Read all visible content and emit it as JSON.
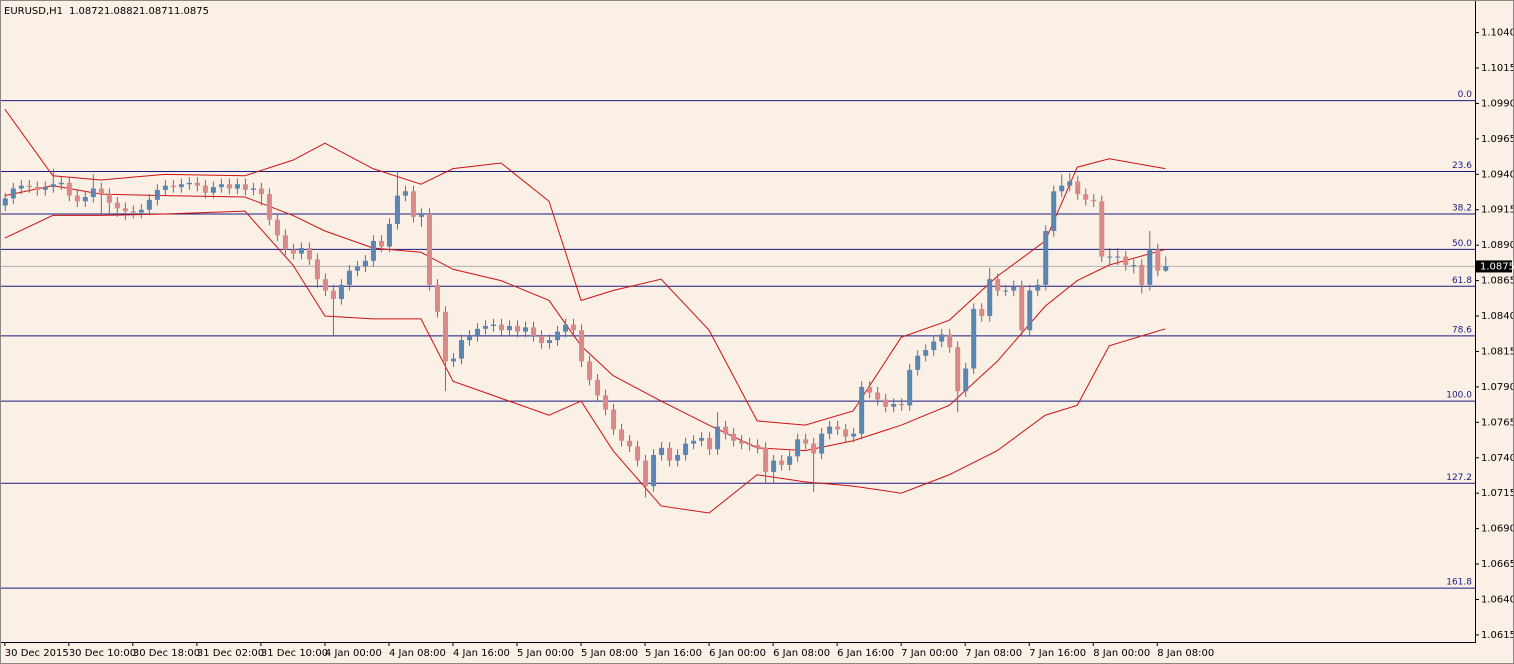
{
  "chart_data": {
    "type": "candlestick",
    "symbol": "EURUSD,H1",
    "background": "#faf0e6",
    "up_color": "#5b86b3",
    "down_color": "#d98a88",
    "wick_color": "#6f6f6f",
    "xlim": [
      -0.6,
      183.7
    ],
    "ylim": [
      1.061,
      1.1063
    ],
    "yticks": [
      {
        "value": 1.104,
        "label": "1.1040"
      },
      1.1015,
      {
        "value": 1.099,
        "label": "1.0990"
      },
      1.0965,
      {
        "value": 1.094,
        "label": "1.0940"
      },
      1.0915,
      {
        "value": 1.089,
        "label": "1.0890"
      },
      1.0865,
      {
        "value": 1.084,
        "label": "1.0840"
      },
      1.0815,
      {
        "value": 1.079,
        "label": "1.0790"
      },
      1.0765,
      {
        "value": 1.074,
        "label": "1.0740"
      },
      1.0715,
      {
        "value": 1.069,
        "label": "1.0690"
      },
      1.0665,
      {
        "value": 1.064,
        "label": "1.0640"
      },
      1.0615
    ],
    "xticks": [
      {
        "value": 0,
        "label": "30 Dec 2015"
      },
      {
        "value": 8,
        "label": "30 Dec 10:00"
      },
      {
        "value": 16,
        "label": "30 Dec 18:00"
      },
      {
        "value": 24,
        "label": "31 Dec 02:00"
      },
      {
        "value": 32,
        "label": "31 Dec 10:00"
      },
      {
        "value": 40,
        "label": "4 Jan 00:00"
      },
      {
        "value": 48,
        "label": "4 Jan 08:00"
      },
      {
        "value": 56,
        "label": "4 Jan 16:00"
      },
      {
        "value": 64,
        "label": "5 Jan 00:00"
      },
      {
        "value": 72,
        "label": "5 Jan 08:00"
      },
      {
        "value": 80,
        "label": "5 Jan 16:00"
      },
      {
        "value": 88,
        "label": "6 Jan 00:00"
      },
      {
        "value": 96,
        "label": "6 Jan 08:00"
      },
      {
        "value": 104,
        "label": "6 Jan 16:00"
      },
      {
        "value": 112,
        "label": "7 Jan 00:00"
      },
      {
        "value": 120,
        "label": "7 Jan 08:00"
      },
      {
        "value": 128,
        "label": "7 Jan 16:00"
      },
      {
        "value": 136,
        "label": "8 Jan 00:00"
      },
      {
        "value": 144,
        "label": "8 Jan 08:00"
      }
    ],
    "open": [
      1.0918,
      1.0923,
      1.093,
      1.0932,
      1.0931,
      1.0929,
      1.0931,
      1.0933,
      1.0934,
      1.0925,
      1.0921,
      1.0924,
      1.093,
      1.0926,
      1.092,
      1.0916,
      1.0914,
      1.0913,
      1.0915,
      1.0922,
      1.0929,
      1.0932,
      1.0931,
      1.0933,
      1.0934,
      1.0932,
      1.0927,
      1.0931,
      1.0933,
      1.093,
      1.0933,
      1.0929,
      1.093,
      1.0926,
      1.0908,
      1.0897,
      1.0887,
      1.0884,
      1.0888,
      1.088,
      1.0866,
      1.0858,
      1.0852,
      1.0862,
      1.0872,
      1.0875,
      1.0879,
      1.0893,
      1.0889,
      1.0905,
      1.0925,
      1.0928,
      1.091,
      1.0912,
      1.0862,
      1.0843,
      1.0808,
      1.081,
      1.0823,
      1.0826,
      1.0831,
      1.0833,
      1.0834,
      1.083,
      1.0833,
      1.0829,
      1.0832,
      1.0826,
      1.0821,
      1.0823,
      1.0829,
      1.0834,
      1.083,
      1.0808,
      1.0795,
      1.0784,
      1.0774,
      1.076,
      1.0752,
      1.0748,
      1.0738,
      1.072,
      1.0742,
      1.0747,
      1.0738,
      1.0742,
      1.075,
      1.0752,
      1.0754,
      1.0746,
      1.0762,
      1.0757,
      1.0752,
      1.075,
      1.0749,
      1.0747,
      1.073,
      1.0738,
      1.0735,
      1.0741,
      1.0753,
      1.075,
      1.0743,
      1.0757,
      1.0762,
      1.076,
      1.0755,
      1.0757,
      1.079,
      1.0786,
      1.0781,
      1.0776,
      1.0778,
      1.0777,
      1.0802,
      1.0812,
      1.0816,
      1.0822,
      1.0827,
      1.0818,
      1.0787,
      1.0803,
      1.0845,
      1.084,
      1.0866,
      1.0858,
      1.0858,
      1.0861,
      1.083,
      1.0858,
      1.0862,
      1.09,
      1.0928,
      1.0932,
      1.0935,
      1.0926,
      1.0922,
      1.0921,
      1.0882,
      1.0882,
      1.0882,
      1.0876,
      1.0876,
      1.0862,
      1.0887,
      1.0872
    ],
    "high": [
      1.0927,
      1.0934,
      1.0936,
      1.0936,
      1.0935,
      1.0935,
      1.0944,
      1.0938,
      1.0938,
      1.0929,
      1.0928,
      1.094,
      1.0934,
      1.093,
      1.0924,
      1.092,
      1.0918,
      1.0919,
      1.0926,
      1.0933,
      1.0936,
      1.0936,
      1.0937,
      1.0938,
      1.0938,
      1.0936,
      1.0935,
      1.0937,
      1.0937,
      1.0937,
      1.0937,
      1.0934,
      1.0934,
      1.093,
      1.0912,
      1.0901,
      1.0891,
      1.0892,
      1.0892,
      1.0884,
      1.087,
      1.0862,
      1.0866,
      1.0876,
      1.0879,
      1.0883,
      1.0897,
      1.0897,
      1.0909,
      1.0942,
      1.0932,
      1.0932,
      1.0916,
      1.0916,
      1.0866,
      1.0847,
      1.0814,
      1.0827,
      1.083,
      1.0835,
      1.0837,
      1.0838,
      1.0838,
      1.0837,
      1.0837,
      1.0836,
      1.0836,
      1.083,
      1.0827,
      1.0833,
      1.0838,
      1.0838,
      1.0834,
      1.0812,
      1.0799,
      1.0788,
      1.0778,
      1.0764,
      1.0756,
      1.0752,
      1.0742,
      1.0746,
      1.0751,
      1.0751,
      1.0746,
      1.0754,
      1.0756,
      1.0758,
      1.0758,
      1.0772,
      1.0766,
      1.0761,
      1.0756,
      1.0754,
      1.0753,
      1.0751,
      1.0742,
      1.0742,
      1.0745,
      1.0757,
      1.0757,
      1.0754,
      1.0761,
      1.0766,
      1.0766,
      1.0764,
      1.0761,
      1.0794,
      1.0794,
      1.079,
      1.0785,
      1.0782,
      1.0782,
      1.0806,
      1.0816,
      1.082,
      1.0826,
      1.0831,
      1.0831,
      1.0822,
      1.0807,
      1.0849,
      1.0849,
      1.0874,
      1.087,
      1.0862,
      1.0865,
      1.0865,
      1.0862,
      1.0866,
      1.0904,
      1.0932,
      1.094,
      1.0941,
      1.0939,
      1.093,
      1.0926,
      1.0925,
      1.0888,
      1.0888,
      1.0886,
      1.088,
      1.088,
      1.09,
      1.0891,
      1.0882
    ],
    "low": [
      1.0914,
      1.0919,
      1.0926,
      1.0927,
      1.0925,
      1.0925,
      1.0927,
      1.0929,
      1.0921,
      1.0917,
      1.0917,
      1.092,
      1.0912,
      1.0912,
      1.091,
      1.0908,
      1.0909,
      1.0909,
      1.0911,
      1.0918,
      1.0925,
      1.0927,
      1.0927,
      1.0929,
      1.0928,
      1.0923,
      1.0923,
      1.0927,
      1.0926,
      1.0926,
      1.0925,
      1.0925,
      1.0918,
      1.0904,
      1.0893,
      1.0883,
      1.088,
      1.088,
      1.0876,
      1.086,
      1.0854,
      1.0826,
      1.0848,
      1.0858,
      1.0868,
      1.0871,
      1.0875,
      1.0885,
      1.0885,
      1.0901,
      1.0921,
      1.0906,
      1.0903,
      1.0858,
      1.0839,
      1.0787,
      1.0804,
      1.0806,
      1.0819,
      1.0822,
      1.0827,
      1.0829,
      1.0826,
      1.0826,
      1.0825,
      1.0825,
      1.0822,
      1.0817,
      1.0817,
      1.0819,
      1.0825,
      1.0826,
      1.0804,
      1.0791,
      1.078,
      1.077,
      1.0756,
      1.0748,
      1.0744,
      1.0734,
      1.0712,
      1.0716,
      1.0738,
      1.0734,
      1.0734,
      1.0738,
      1.0746,
      1.0748,
      1.0742,
      1.0742,
      1.0753,
      1.0748,
      1.0746,
      1.0745,
      1.0743,
      1.0722,
      1.0722,
      1.0731,
      1.0731,
      1.0737,
      1.0746,
      1.0716,
      1.0739,
      1.0753,
      1.0756,
      1.0751,
      1.0751,
      1.0753,
      1.0782,
      1.0777,
      1.0772,
      1.0772,
      1.0773,
      1.0773,
      1.0798,
      1.0808,
      1.0812,
      1.0818,
      1.0814,
      1.0772,
      1.0783,
      1.0799,
      1.0836,
      1.0836,
      1.0854,
      1.0854,
      1.0854,
      1.0826,
      1.0826,
      1.0854,
      1.0858,
      1.0896,
      1.0924,
      1.0928,
      1.0922,
      1.0918,
      1.0917,
      1.0878,
      1.0876,
      1.0876,
      1.0872,
      1.087,
      1.0856,
      1.0858,
      1.0868,
      1.0871
    ],
    "close": [
      1.0923,
      1.093,
      1.0932,
      1.0931,
      1.0929,
      1.0931,
      1.0933,
      1.0934,
      1.0925,
      1.0921,
      1.0924,
      1.093,
      1.0926,
      1.092,
      1.0916,
      1.0914,
      1.0913,
      1.0915,
      1.0922,
      1.0929,
      1.0932,
      1.0931,
      1.0933,
      1.0934,
      1.0932,
      1.0927,
      1.0931,
      1.0933,
      1.093,
      1.0933,
      1.0929,
      1.093,
      1.0926,
      1.0908,
      1.0897,
      1.0887,
      1.0884,
      1.0888,
      1.088,
      1.0866,
      1.0858,
      1.0852,
      1.0862,
      1.0872,
      1.0875,
      1.0879,
      1.0893,
      1.0889,
      1.0905,
      1.0925,
      1.0928,
      1.091,
      1.0912,
      1.0862,
      1.0843,
      1.0808,
      1.081,
      1.0823,
      1.0826,
      1.0831,
      1.0833,
      1.0834,
      1.083,
      1.0833,
      1.0829,
      1.0832,
      1.0826,
      1.0821,
      1.0823,
      1.0829,
      1.0834,
      1.083,
      1.0808,
      1.0795,
      1.0784,
      1.0774,
      1.076,
      1.0752,
      1.0748,
      1.0738,
      1.072,
      1.0742,
      1.0747,
      1.0738,
      1.0742,
      1.075,
      1.0752,
      1.0754,
      1.0746,
      1.0762,
      1.0757,
      1.0752,
      1.075,
      1.0749,
      1.0747,
      1.073,
      1.0738,
      1.0735,
      1.0741,
      1.0753,
      1.075,
      1.0743,
      1.0757,
      1.0762,
      1.076,
      1.0755,
      1.0757,
      1.079,
      1.0786,
      1.0781,
      1.0776,
      1.0778,
      1.0777,
      1.0802,
      1.0812,
      1.0816,
      1.0822,
      1.0827,
      1.0818,
      1.0787,
      1.0803,
      1.0845,
      1.084,
      1.0866,
      1.0858,
      1.0858,
      1.0861,
      1.083,
      1.0858,
      1.0862,
      1.09,
      1.0928,
      1.0932,
      1.0935,
      1.0926,
      1.0922,
      1.0921,
      1.0882,
      1.0882,
      1.0882,
      1.0876,
      1.0876,
      1.0862,
      1.0887,
      1.0872,
      1.0875
    ],
    "bands": {
      "color": "#d01010",
      "x": [
        0,
        6,
        12,
        20,
        30,
        36,
        40,
        46,
        52,
        56,
        62,
        68,
        72,
        76,
        82,
        88,
        94,
        100,
        106,
        112,
        118,
        124,
        130,
        134,
        138,
        145
      ],
      "upper": [
        1.0986,
        1.0939,
        1.0936,
        1.094,
        1.0939,
        1.095,
        1.0962,
        1.0944,
        1.0933,
        1.0944,
        1.0948,
        1.0921,
        1.0851,
        1.0858,
        1.0866,
        1.083,
        1.0766,
        1.0763,
        1.0773,
        1.0825,
        1.0837,
        1.0868,
        1.0893,
        1.0945,
        1.0951,
        1.0944
      ],
      "middle": [
        1.0925,
        1.0932,
        1.0926,
        1.0925,
        1.0924,
        1.0911,
        1.09,
        1.0888,
        1.0885,
        1.0873,
        1.0865,
        1.0851,
        1.0819,
        1.0798,
        1.078,
        1.0763,
        1.0747,
        1.0745,
        1.0752,
        1.0763,
        1.0777,
        1.0808,
        1.0847,
        1.0865,
        1.0876,
        1.0887
      ],
      "lower": [
        1.0895,
        1.0911,
        1.0911,
        1.0912,
        1.0914,
        1.0876,
        1.084,
        1.0838,
        1.0838,
        1.0794,
        1.0782,
        1.077,
        1.078,
        1.0745,
        1.0706,
        1.0701,
        1.0728,
        1.0723,
        1.072,
        1.0715,
        1.0728,
        1.0745,
        1.077,
        1.0777,
        1.0819,
        1.0831
      ]
    },
    "fib_color": "#1a1a80",
    "fib_levels": [
      {
        "label": "0.0",
        "value": 1.0992
      },
      {
        "label": "23.6",
        "value": 1.0942
      },
      {
        "label": "38.2",
        "value": 1.0912
      },
      {
        "label": "50.0",
        "value": 1.0887
      },
      {
        "label": "61.8",
        "value": 1.0861
      },
      {
        "label": "78.6",
        "value": 1.0826
      },
      {
        "label": "100.0",
        "value": 1.078
      },
      {
        "label": "127.2",
        "value": 1.0722
      },
      {
        "label": "161.8",
        "value": 1.0648
      }
    ]
  }
}
